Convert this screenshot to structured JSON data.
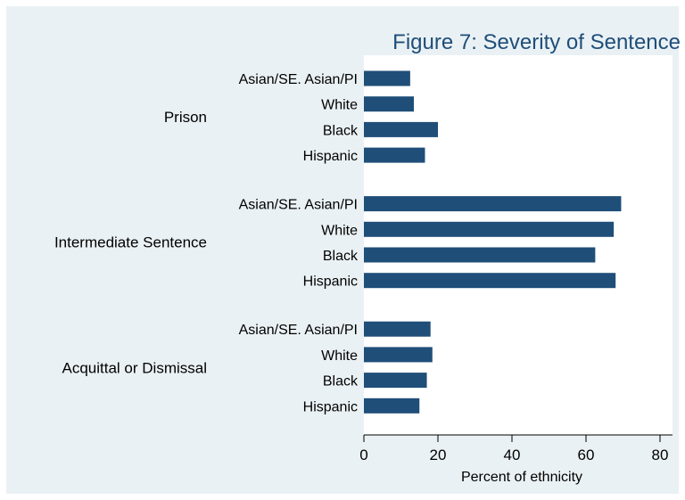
{
  "chart_data": {
    "type": "bar",
    "orientation": "horizontal",
    "title": "Figure 7: Severity of Sentence",
    "xlabel": "Percent of ethnicity",
    "xlim": [
      0,
      80
    ],
    "xticks": [
      0,
      20,
      40,
      60,
      80
    ],
    "colors": {
      "bar": "#1f4e79",
      "background": "#eaf1f4",
      "plot": "#ffffff"
    },
    "groups": [
      {
        "name": "Prison",
        "bars": [
          {
            "label": "Asian/SE. Asian/PI",
            "value": 12.5
          },
          {
            "label": "White",
            "value": 13.5
          },
          {
            "label": "Black",
            "value": 20
          },
          {
            "label": "Hispanic",
            "value": 16.5
          }
        ]
      },
      {
        "name": "Intermediate Sentence",
        "bars": [
          {
            "label": "Asian/SE. Asian/PI",
            "value": 69.5
          },
          {
            "label": "White",
            "value": 67.5
          },
          {
            "label": "Black",
            "value": 62.5
          },
          {
            "label": "Hispanic",
            "value": 68
          }
        ]
      },
      {
        "name": "Acquittal or Dismissal",
        "bars": [
          {
            "label": "Asian/SE. Asian/PI",
            "value": 18
          },
          {
            "label": "White",
            "value": 18.5
          },
          {
            "label": "Black",
            "value": 17
          },
          {
            "label": "Hispanic",
            "value": 15
          }
        ]
      }
    ]
  }
}
